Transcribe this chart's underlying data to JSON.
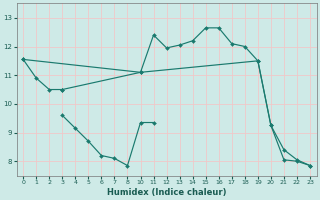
{
  "bg_color": "#ceeae7",
  "grid_color": "#f0c8c8",
  "line_color": "#1a7a6e",
  "xlabel": "Humidex (Indice chaleur)",
  "ylim": [
    7.5,
    13.5
  ],
  "yticks": [
    8,
    9,
    10,
    11,
    12,
    13
  ],
  "xtick_vals": [
    0,
    1,
    2,
    3,
    4,
    5,
    6,
    7,
    8,
    10,
    11,
    12,
    13,
    14,
    15,
    16,
    17,
    18,
    19,
    20,
    21,
    22,
    23
  ],
  "series": [
    {
      "x": [
        0,
        1,
        2,
        3
      ],
      "y": [
        11.55,
        10.9,
        10.5,
        10.5
      ]
    },
    {
      "x": [
        3,
        10,
        11,
        12,
        13,
        14,
        15,
        16,
        17,
        18,
        19,
        20,
        21,
        22,
        23
      ],
      "y": [
        10.5,
        11.1,
        12.4,
        11.95,
        12.05,
        12.2,
        12.65,
        12.65,
        12.1,
        12.0,
        11.5,
        9.25,
        8.05,
        8.0,
        7.85
      ]
    },
    {
      "x": [
        0,
        10,
        19,
        20,
        21,
        22,
        23
      ],
      "y": [
        11.55,
        11.1,
        11.5,
        9.25,
        8.4,
        8.05,
        7.85
      ]
    },
    {
      "x": [
        3,
        4,
        5,
        6,
        7,
        8,
        10,
        11
      ],
      "y": [
        9.6,
        9.15,
        8.7,
        8.2,
        8.1,
        7.85,
        9.35,
        9.35
      ]
    }
  ]
}
